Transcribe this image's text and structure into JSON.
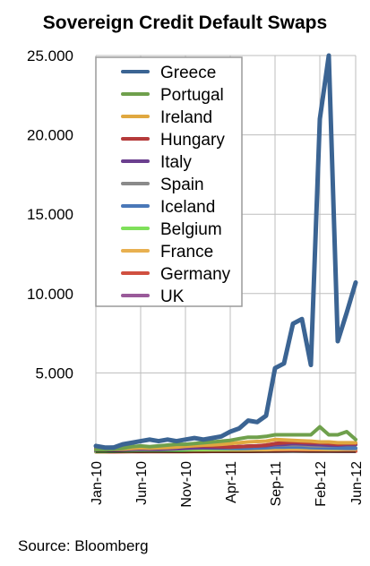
{
  "chart_data": {
    "type": "line",
    "title": "Sovereign Credit Default Swaps",
    "xlabel": "",
    "ylabel": "",
    "ylim": [
      0,
      25000
    ],
    "yticks": [
      "25.000",
      "20.000",
      "15.000",
      "10.000",
      "5.000"
    ],
    "ytick_values": [
      25000,
      20000,
      15000,
      10000,
      5000
    ],
    "x_tick_labels": [
      "Jan-10",
      "Jun-10",
      "Nov-10",
      "Apr-11",
      "Sep-11",
      "Feb-12",
      "Jun-12"
    ],
    "x_tick_index": [
      0,
      5,
      10,
      15,
      20,
      25,
      29
    ],
    "x": [
      "Jan-10",
      "Feb-10",
      "Mar-10",
      "Apr-10",
      "May-10",
      "Jun-10",
      "Jul-10",
      "Aug-10",
      "Sep-10",
      "Oct-10",
      "Nov-10",
      "Dec-10",
      "Jan-11",
      "Feb-11",
      "Mar-11",
      "Apr-11",
      "May-11",
      "Jun-11",
      "Jul-11",
      "Aug-11",
      "Sep-11",
      "Oct-11",
      "Nov-11",
      "Dec-11",
      "Jan-12",
      "Feb-12",
      "Mar-12",
      "Apr-12",
      "May-12",
      "Jun-12"
    ],
    "grid": "horizontal and vertical",
    "legend_placement": "top-left",
    "series": [
      {
        "name": "Greece",
        "color": "#3b6493",
        "values": [
          400,
          300,
          300,
          500,
          600,
          700,
          800,
          700,
          800,
          700,
          800,
          900,
          800,
          900,
          1000,
          1300,
          1500,
          2000,
          1900,
          2300,
          5300,
          5600,
          8100,
          8400,
          5500,
          21000,
          25000,
          7000,
          8800,
          10700
        ]
      },
      {
        "name": "Portugal",
        "color": "#6fa04c",
        "values": [
          150,
          150,
          200,
          250,
          350,
          400,
          350,
          400,
          450,
          500,
          500,
          550,
          600,
          650,
          700,
          750,
          850,
          950,
          950,
          1000,
          1100,
          1100,
          1100,
          1100,
          1100,
          1600,
          1100,
          1100,
          1300,
          800
        ]
      },
      {
        "name": "Ireland",
        "color": "#e0a840",
        "values": [
          150,
          150,
          180,
          200,
          250,
          280,
          260,
          280,
          300,
          330,
          380,
          420,
          450,
          470,
          500,
          550,
          600,
          650,
          680,
          700,
          800,
          780,
          750,
          720,
          700,
          650,
          650,
          600,
          600,
          600
        ]
      },
      {
        "name": "Hungary",
        "color": "#b53a3a",
        "values": [
          200,
          200,
          220,
          250,
          300,
          320,
          320,
          330,
          340,
          350,
          380,
          400,
          400,
          380,
          350,
          330,
          350,
          380,
          400,
          450,
          550,
          600,
          650,
          620,
          600,
          600,
          550,
          500,
          550,
          550
        ]
      },
      {
        "name": "Italy",
        "color": "#6b3f8f",
        "values": [
          100,
          100,
          120,
          150,
          180,
          200,
          180,
          180,
          200,
          220,
          250,
          270,
          280,
          290,
          300,
          320,
          350,
          380,
          400,
          420,
          480,
          500,
          550,
          530,
          500,
          480,
          450,
          450,
          480,
          480
        ]
      },
      {
        "name": "Spain",
        "color": "#8a8a8a",
        "values": [
          100,
          100,
          120,
          150,
          180,
          200,
          180,
          190,
          200,
          230,
          270,
          300,
          310,
          320,
          320,
          330,
          350,
          380,
          400,
          420,
          450,
          470,
          480,
          460,
          420,
          400,
          420,
          450,
          500,
          520
        ]
      },
      {
        "name": "Iceland",
        "color": "#4a78b8",
        "values": [
          300,
          300,
          320,
          340,
          350,
          360,
          340,
          330,
          320,
          310,
          300,
          290,
          280,
          270,
          260,
          250,
          240,
          250,
          270,
          290,
          320,
          330,
          340,
          330,
          300,
          280,
          270,
          260,
          250,
          250
        ]
      },
      {
        "name": "Belgium",
        "color": "#7fe05a",
        "values": [
          50,
          50,
          60,
          70,
          80,
          90,
          90,
          100,
          110,
          120,
          150,
          180,
          190,
          200,
          200,
          210,
          220,
          240,
          260,
          280,
          320,
          330,
          340,
          320,
          300,
          280,
          260,
          250,
          260,
          260
        ]
      },
      {
        "name": "France",
        "color": "#e8b050",
        "values": [
          50,
          50,
          60,
          70,
          80,
          85,
          80,
          80,
          85,
          90,
          100,
          110,
          115,
          120,
          120,
          125,
          130,
          140,
          150,
          160,
          190,
          200,
          210,
          200,
          190,
          180,
          170,
          170,
          180,
          180
        ]
      },
      {
        "name": "Germany",
        "color": "#d05040",
        "values": [
          30,
          30,
          30,
          35,
          40,
          40,
          40,
          40,
          40,
          42,
          45,
          50,
          52,
          55,
          55,
          55,
          55,
          58,
          60,
          65,
          75,
          80,
          85,
          80,
          75,
          70,
          65,
          65,
          70,
          70
        ]
      },
      {
        "name": "UK",
        "color": "#9a5a9a",
        "values": [
          60,
          60,
          65,
          70,
          75,
          75,
          72,
          70,
          70,
          70,
          70,
          72,
          72,
          72,
          72,
          72,
          73,
          75,
          78,
          80,
          90,
          95,
          100,
          95,
          90,
          85,
          82,
          80,
          80,
          80
        ]
      }
    ]
  },
  "source_note": "Source: Bloomberg"
}
